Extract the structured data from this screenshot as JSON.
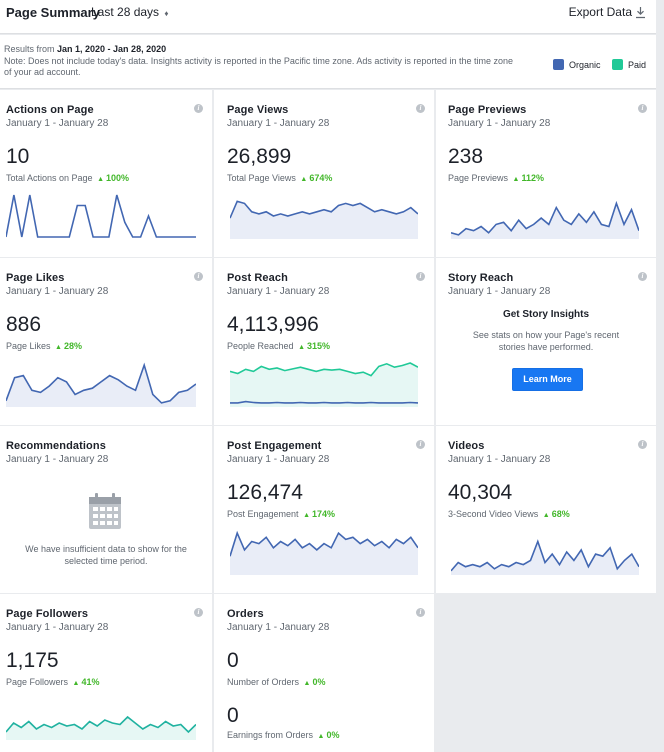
{
  "header": {
    "title": "Page Summary",
    "range": "Last 28 days",
    "range_caret": "♦",
    "export": "Export Data"
  },
  "info": {
    "results_prefix": "Results from ",
    "results_range": "Jan 1, 2020 - Jan 28, 2020",
    "note": "Note: Does not include today's data. Insights activity is reported in the Pacific time zone. Ads activity is reported in the time zone of your ad account.",
    "legend": [
      {
        "label": "Organic",
        "color": "#4267b2"
      },
      {
        "label": "Paid",
        "color": "#20c997"
      }
    ]
  },
  "date_range": "January 1 - January 28",
  "info_glyph": "i",
  "cards": {
    "actions": {
      "title": "Actions on Page",
      "value": "10",
      "label": "Total Actions on Page",
      "change": "100%",
      "spark": [
        0,
        1,
        0,
        1,
        0,
        0,
        0,
        0,
        0,
        0.75,
        0.75,
        0,
        0,
        0,
        1,
        0.35,
        0,
        0,
        0.5,
        0,
        0,
        0,
        0,
        0,
        0
      ]
    },
    "page_views": {
      "title": "Page Views",
      "value": "26,899",
      "label": "Total Page Views",
      "change": "674%",
      "spark": [
        0.45,
        0.85,
        0.8,
        0.6,
        0.55,
        0.6,
        0.5,
        0.55,
        0.5,
        0.55,
        0.6,
        0.55,
        0.6,
        0.65,
        0.6,
        0.75,
        0.8,
        0.75,
        0.8,
        0.7,
        0.6,
        0.65,
        0.6,
        0.55,
        0.6,
        0.7,
        0.55
      ]
    },
    "page_previews": {
      "title": "Page Previews",
      "value": "238",
      "label": "Page Previews",
      "change": "112%",
      "spark": [
        0.1,
        0.05,
        0.2,
        0.15,
        0.25,
        0.1,
        0.3,
        0.35,
        0.15,
        0.4,
        0.2,
        0.3,
        0.45,
        0.3,
        0.7,
        0.4,
        0.3,
        0.55,
        0.35,
        0.6,
        0.3,
        0.25,
        0.8,
        0.3,
        0.65,
        0.15
      ]
    },
    "page_likes": {
      "title": "Page Likes",
      "value": "886",
      "label": "Page Likes",
      "change": "28%",
      "spark": [
        0.1,
        0.65,
        0.7,
        0.35,
        0.3,
        0.45,
        0.65,
        0.55,
        0.25,
        0.35,
        0.4,
        0.55,
        0.7,
        0.6,
        0.45,
        0.35,
        0.95,
        0.25,
        0.05,
        0.1,
        0.3,
        0.35,
        0.5
      ]
    },
    "post_reach": {
      "title": "Post Reach",
      "value": "4,113,996",
      "label": "People Reached",
      "change": "315%",
      "organic": [
        0.05,
        0.05,
        0.08,
        0.06,
        0.05,
        0.05,
        0.06,
        0.05,
        0.05,
        0.06,
        0.05,
        0.05,
        0.06,
        0.05,
        0.05,
        0.06,
        0.05,
        0.05,
        0.06,
        0.05,
        0.05,
        0.05,
        0.05,
        0.06,
        0.05
      ],
      "paid": [
        0.8,
        0.75,
        0.85,
        0.8,
        0.92,
        0.85,
        0.88,
        0.82,
        0.86,
        0.9,
        0.85,
        0.8,
        0.85,
        0.83,
        0.85,
        0.8,
        0.75,
        0.78,
        0.7,
        0.92,
        0.98,
        0.9,
        0.94,
        1.0,
        0.9
      ]
    },
    "story_reach": {
      "title": "Story Reach",
      "heading": "Get Story Insights",
      "description": "See stats on how your Page's recent stories have performed.",
      "button": "Learn More"
    },
    "recommendations": {
      "title": "Recommendations",
      "message": "We have insufficient data to show for the selected time period."
    },
    "post_engagement": {
      "title": "Post Engagement",
      "value": "126,474",
      "label": "Post Engagement",
      "change": "174%",
      "spark": [
        0.4,
        0.95,
        0.55,
        0.75,
        0.7,
        0.85,
        0.6,
        0.75,
        0.65,
        0.8,
        0.6,
        0.7,
        0.55,
        0.7,
        0.6,
        0.95,
        0.8,
        0.85,
        0.7,
        0.8,
        0.65,
        0.75,
        0.6,
        0.8,
        0.7,
        0.85,
        0.6
      ]
    },
    "videos": {
      "title": "Videos",
      "value": "40,304",
      "label": "3-Second Video Views",
      "change": "68%",
      "spark": [
        0.05,
        0.25,
        0.15,
        0.2,
        0.15,
        0.25,
        0.1,
        0.2,
        0.15,
        0.25,
        0.2,
        0.3,
        0.75,
        0.25,
        0.45,
        0.2,
        0.5,
        0.3,
        0.55,
        0.15,
        0.45,
        0.4,
        0.6,
        0.1,
        0.3,
        0.45,
        0.15
      ]
    },
    "followers": {
      "title": "Page Followers",
      "value": "1,175",
      "label": "Page Followers",
      "change": "41%",
      "spark": [
        0.2,
        0.5,
        0.35,
        0.55,
        0.3,
        0.45,
        0.35,
        0.5,
        0.4,
        0.45,
        0.3,
        0.55,
        0.4,
        0.6,
        0.5,
        0.45,
        0.7,
        0.5,
        0.3,
        0.45,
        0.35,
        0.55,
        0.4,
        0.45,
        0.2,
        0.45
      ]
    },
    "orders": {
      "title": "Orders",
      "value": "0",
      "label": "Number of Orders",
      "change": "0%",
      "value2": "0",
      "label2": "Earnings from Orders",
      "change2": "0%"
    }
  }
}
